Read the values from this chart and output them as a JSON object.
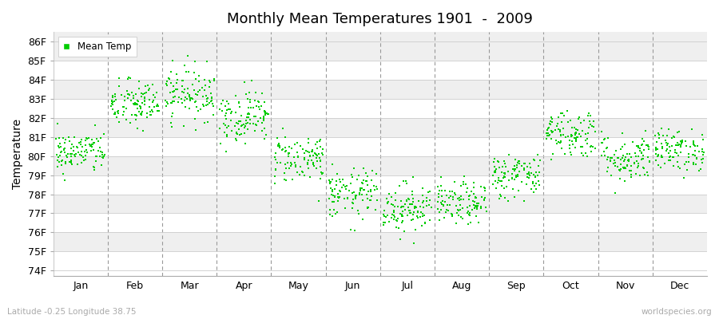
{
  "title": "Monthly Mean Temperatures 1901  -  2009",
  "ylabel": "Temperature",
  "subtitle_left": "Latitude -0.25 Longitude 38.75",
  "subtitle_right": "worldspecies.org",
  "ytick_labels": [
    "74F",
    "75F",
    "76F",
    "77F",
    "78F",
    "79F",
    "80F",
    "81F",
    "82F",
    "83F",
    "84F",
    "85F",
    "86F"
  ],
  "ytick_values": [
    74,
    75,
    76,
    77,
    78,
    79,
    80,
    81,
    82,
    83,
    84,
    85,
    86
  ],
  "ylim": [
    73.7,
    86.5
  ],
  "months": [
    "Jan",
    "Feb",
    "Mar",
    "Apr",
    "May",
    "Jun",
    "Jul",
    "Aug",
    "Sep",
    "Oct",
    "Nov",
    "Dec"
  ],
  "dot_color": "#00CC00",
  "dot_size": 3,
  "background_color": "#FFFFFF",
  "plot_bg": "#FFFFFF",
  "band_color_a": "#EFEFEF",
  "band_color_b": "#FFFFFF",
  "dashed_line_color": "#999999",
  "legend_marker_color": "#00CC00",
  "seed": 42,
  "n_years": 109,
  "mean_temps_F": [
    80.2,
    82.7,
    83.3,
    82.1,
    79.9,
    78.0,
    77.3,
    77.5,
    79.0,
    81.2,
    79.9,
    80.3
  ],
  "std_temps_F": [
    0.55,
    0.65,
    0.7,
    0.7,
    0.65,
    0.65,
    0.65,
    0.55,
    0.6,
    0.65,
    0.65,
    0.55
  ]
}
